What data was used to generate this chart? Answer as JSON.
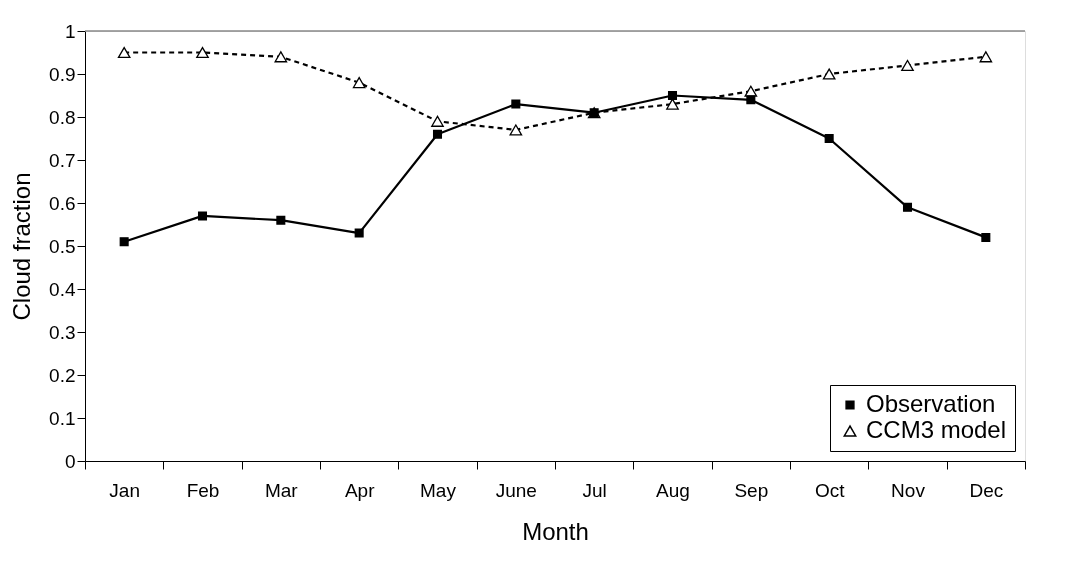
{
  "chart_data": {
    "type": "line",
    "xlabel": "Month",
    "ylabel": "Cloud fraction",
    "categories": [
      "Jan",
      "Feb",
      "Mar",
      "Apr",
      "May",
      "June",
      "Jul",
      "Aug",
      "Sep",
      "Oct",
      "Nov",
      "Dec"
    ],
    "series": [
      {
        "name": "Observation",
        "color": "#000000",
        "marker": "square",
        "line_style": "solid",
        "values": [
          0.51,
          0.57,
          0.56,
          0.53,
          0.76,
          0.83,
          0.81,
          0.85,
          0.84,
          0.75,
          0.59,
          0.52
        ]
      },
      {
        "name": "CCM3 model",
        "color": "#000000",
        "marker": "triangle",
        "line_style": "dashed",
        "values": [
          0.95,
          0.95,
          0.94,
          0.88,
          0.79,
          0.77,
          0.81,
          0.83,
          0.86,
          0.9,
          0.92,
          0.94
        ]
      }
    ],
    "ylim": [
      0,
      1
    ],
    "yticks": [
      0,
      0.1,
      0.2,
      0.3,
      0.4,
      0.5,
      0.6,
      0.7,
      0.8,
      0.9,
      1
    ],
    "grid": false,
    "legend": "bottom right"
  }
}
